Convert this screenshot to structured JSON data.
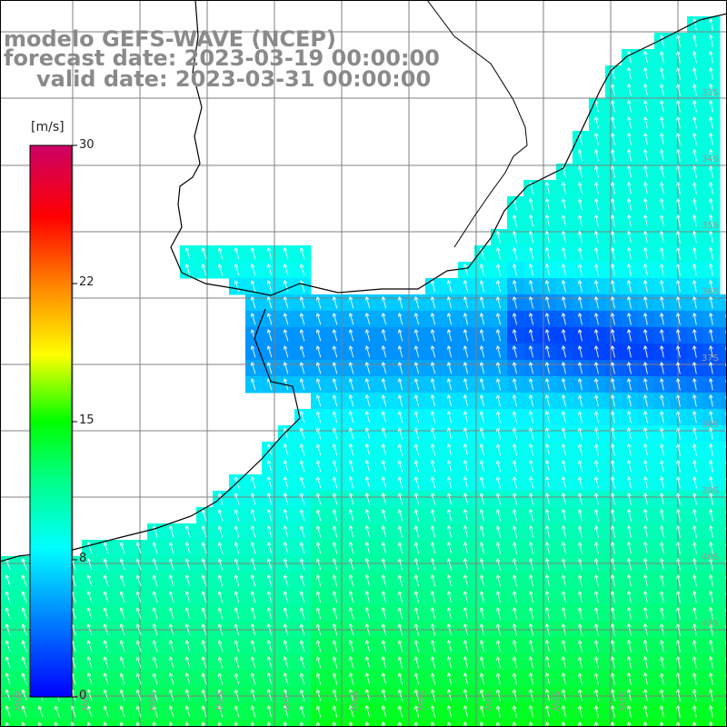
{
  "title": {
    "line1": "modelo GEFS-WAVE (NCEP)",
    "line2": "forecast date: 2023-03-19 00:00:00",
    "line3": "valid date: 2023-03-31 00:00:00"
  },
  "colorbar": {
    "unit": "[m/s]",
    "ticks": [
      "30",
      "22",
      "15",
      "8",
      "0"
    ],
    "min": 0,
    "max": 30,
    "colors": [
      "#0000ff",
      "#0080ff",
      "#00ffff",
      "#00ff00",
      "#ffff00",
      "#ff8000",
      "#ff0000",
      "#cc0066"
    ]
  },
  "map": {
    "land_color": "#ffffff",
    "grid_color": "#808080",
    "arrow_color": "#ffffff",
    "coastline_color": "#000000",
    "lon_labels": [
      "60W",
      "59W",
      "58W",
      "57W",
      "56W",
      "55W",
      "54W",
      "53W",
      "52W",
      "51W"
    ],
    "lat_labels": [
      "33S",
      "34S",
      "35S",
      "36S",
      "37S",
      "38S",
      "39S",
      "40S",
      "41S"
    ]
  }
}
